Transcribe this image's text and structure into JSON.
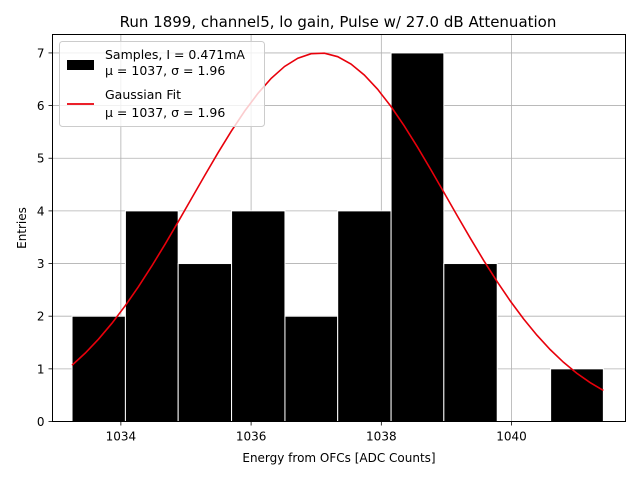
{
  "chart_data": {
    "type": "bar",
    "title": "Run 1899, channel5, lo gain, Pulse w/ 27.0 dB Attenuation",
    "xlabel": "Energy from OFCs [ADC Counts]",
    "ylabel": "Entries",
    "xlim": [
      1032.95,
      1041.75
    ],
    "ylim": [
      0,
      7.35
    ],
    "xticks": [
      1034,
      1036,
      1038,
      1040
    ],
    "yticks": [
      0,
      1,
      2,
      3,
      4,
      5,
      6,
      7
    ],
    "grid": true,
    "legend_position": "top-left",
    "histogram": {
      "name": "Samples, I = 0.471mA",
      "stats": "μ = 1037, σ = 1.96",
      "color": "#000000",
      "bins": [
        {
          "x0": 1033.25,
          "x1": 1034.07,
          "count": 2
        },
        {
          "x0": 1034.07,
          "x1": 1034.88,
          "count": 4
        },
        {
          "x0": 1034.88,
          "x1": 1035.7,
          "count": 3
        },
        {
          "x0": 1035.7,
          "x1": 1036.52,
          "count": 4
        },
        {
          "x0": 1036.52,
          "x1": 1037.33,
          "count": 2
        },
        {
          "x0": 1037.33,
          "x1": 1038.15,
          "count": 4
        },
        {
          "x0": 1038.15,
          "x1": 1038.96,
          "count": 7
        },
        {
          "x0": 1038.96,
          "x1": 1039.78,
          "count": 3
        },
        {
          "x0": 1039.78,
          "x1": 1040.6,
          "count": 0
        },
        {
          "x0": 1040.6,
          "x1": 1041.41,
          "count": 1
        }
      ]
    },
    "fit": {
      "name": "Gaussian Fit",
      "stats": "μ = 1037, σ = 1.96",
      "color": "#e8000b",
      "mu": 1037.05,
      "sigma": 1.96,
      "amplitude": 7.0,
      "x_range": [
        1033.25,
        1041.41
      ]
    }
  }
}
